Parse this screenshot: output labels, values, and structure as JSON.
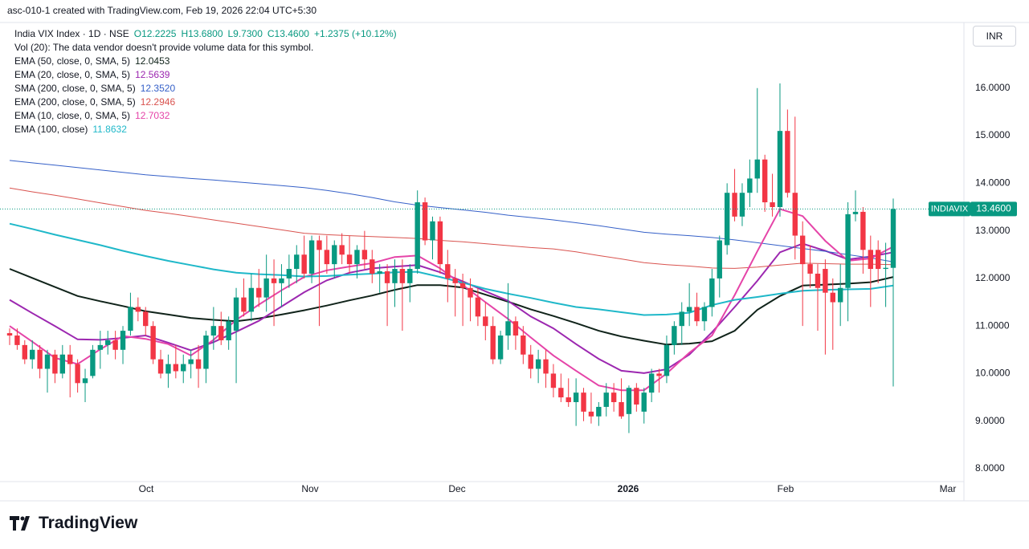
{
  "chart_data": {
    "type": "candlestick",
    "header": "asc-010-1 created with TradingView.com, Feb 19, 2026 22:04 UTC+5:30",
    "symbol": "India VIX Index · 1D · NSE",
    "ohlc_labels": [
      "O12.2225",
      "H13.6800",
      "L9.7300",
      "C13.4600"
    ],
    "change_label": "+1.2375 (+10.12%)",
    "volume_note": "Vol (20): The data vendor doesn't provide volume data for this symbol.",
    "currency": "INR",
    "price_tag": {
      "name": "INDIAVIX",
      "label": "13.4600"
    },
    "brand": "TradingView",
    "up_color": "#089981",
    "down_color": "#f23645",
    "grid": false,
    "x_labels": [
      "Oct",
      "Nov",
      "Dec",
      "2026",
      "Feb",
      "Mar"
    ],
    "ylim": [
      7.73,
      17.38
    ],
    "yticks": [
      {
        "value": 8,
        "label": "8.0000"
      },
      {
        "value": 9,
        "label": "9.0000"
      },
      {
        "value": 10,
        "label": "10.0000"
      },
      {
        "value": 11,
        "label": "11.0000"
      },
      {
        "value": 12,
        "label": "12.0000"
      },
      {
        "value": 13,
        "label": "13.0000"
      },
      {
        "value": 14,
        "label": "14.0000"
      },
      {
        "value": 15,
        "label": "15.0000"
      },
      {
        "value": 16,
        "label": "16.0000"
      }
    ],
    "candles": [
      [
        10.85,
        10.95,
        10.6,
        10.8
      ],
      [
        10.8,
        10.95,
        10.5,
        10.6
      ],
      [
        10.6,
        10.7,
        10.2,
        10.3
      ],
      [
        10.3,
        10.7,
        10.1,
        10.5
      ],
      [
        10.5,
        10.6,
        9.9,
        10.1
      ],
      [
        10.1,
        10.5,
        9.6,
        10.4
      ],
      [
        10.4,
        10.5,
        9.8,
        10.0
      ],
      [
        10.0,
        10.6,
        9.9,
        10.4
      ],
      [
        10.4,
        10.6,
        9.5,
        10.2
      ],
      [
        10.2,
        10.3,
        9.6,
        9.8
      ],
      [
        9.8,
        10.1,
        9.4,
        9.9
      ],
      [
        9.95,
        10.6,
        9.9,
        10.5
      ],
      [
        10.5,
        10.9,
        10.1,
        10.6
      ],
      [
        10.6,
        10.9,
        10.4,
        10.7
      ],
      [
        10.7,
        10.9,
        10.3,
        10.5
      ],
      [
        10.5,
        11.0,
        10.2,
        10.9
      ],
      [
        10.9,
        11.7,
        10.8,
        11.4
      ],
      [
        11.4,
        11.6,
        11.1,
        11.3
      ],
      [
        11.3,
        11.4,
        10.8,
        11.0
      ],
      [
        11.0,
        11.1,
        10.2,
        10.3
      ],
      [
        10.3,
        10.5,
        9.9,
        10.0
      ],
      [
        10.0,
        10.4,
        9.7,
        10.2
      ],
      [
        10.2,
        10.6,
        9.9,
        10.05
      ],
      [
        10.05,
        10.4,
        9.8,
        10.2
      ],
      [
        10.2,
        10.5,
        9.9,
        10.3
      ],
      [
        10.3,
        10.6,
        9.7,
        10.1
      ],
      [
        10.1,
        10.9,
        9.8,
        10.8
      ],
      [
        10.8,
        11.4,
        10.5,
        11.0
      ],
      [
        11.0,
        11.3,
        10.6,
        10.7
      ],
      [
        10.7,
        11.2,
        10.5,
        11.1
      ],
      [
        10.9,
        11.8,
        9.8,
        11.6
      ],
      [
        11.6,
        12.0,
        11.2,
        11.3
      ],
      [
        11.3,
        12.1,
        11.1,
        11.8
      ],
      [
        11.8,
        12.2,
        11.4,
        11.6
      ],
      [
        11.6,
        12.5,
        11.3,
        12.0
      ],
      [
        12.0,
        12.4,
        11.0,
        11.9
      ],
      [
        11.9,
        12.3,
        11.4,
        12.0
      ],
      [
        12.0,
        12.5,
        11.8,
        12.2
      ],
      [
        12.2,
        12.7,
        11.9,
        12.5
      ],
      [
        12.5,
        12.9,
        12.0,
        12.1
      ],
      [
        12.1,
        12.9,
        11.9,
        12.8
      ],
      [
        12.8,
        12.9,
        11.0,
        12.6
      ],
      [
        12.6,
        12.9,
        12.1,
        12.3
      ],
      [
        12.3,
        12.8,
        12.0,
        12.7
      ],
      [
        12.7,
        12.95,
        12.3,
        12.5
      ],
      [
        12.5,
        12.9,
        12.1,
        12.3
      ],
      [
        12.3,
        12.7,
        12.0,
        12.6
      ],
      [
        12.6,
        13.0,
        12.2,
        12.4
      ],
      [
        12.4,
        12.6,
        11.9,
        12.1
      ],
      [
        12.1,
        12.3,
        11.7,
        12.15
      ],
      [
        12.15,
        12.3,
        11.0,
        11.9
      ],
      [
        11.9,
        12.4,
        11.4,
        12.2
      ],
      [
        12.2,
        12.4,
        10.9,
        11.9
      ],
      [
        11.9,
        12.3,
        11.5,
        12.2
      ],
      [
        12.2,
        13.85,
        12.1,
        13.6
      ],
      [
        13.6,
        13.7,
        12.7,
        12.8
      ],
      [
        12.8,
        13.3,
        12.4,
        13.2
      ],
      [
        13.2,
        13.3,
        12.1,
        12.3
      ],
      [
        12.3,
        12.6,
        11.5,
        12.0
      ],
      [
        12.0,
        12.2,
        11.2,
        11.9
      ],
      [
        11.9,
        12.1,
        11.0,
        11.8
      ],
      [
        11.8,
        12.0,
        11.1,
        11.6
      ],
      [
        11.6,
        11.8,
        11.0,
        11.2
      ],
      [
        11.2,
        11.5,
        10.7,
        11.0
      ],
      [
        11.0,
        11.2,
        10.2,
        10.3
      ],
      [
        10.3,
        10.9,
        10.2,
        10.8
      ],
      [
        10.8,
        11.9,
        10.5,
        11.1
      ],
      [
        11.1,
        11.2,
        10.5,
        10.8
      ],
      [
        10.8,
        11.0,
        10.2,
        10.4
      ],
      [
        10.4,
        10.6,
        9.9,
        10.1
      ],
      [
        10.1,
        10.5,
        9.8,
        10.3
      ],
      [
        10.3,
        10.5,
        9.7,
        10.0
      ],
      [
        10.0,
        10.2,
        9.5,
        9.7
      ],
      [
        9.7,
        10.0,
        9.4,
        9.5
      ],
      [
        9.5,
        9.9,
        9.3,
        9.4
      ],
      [
        9.4,
        9.9,
        8.9,
        9.6
      ],
      [
        9.6,
        9.7,
        9.0,
        9.2
      ],
      [
        9.2,
        9.6,
        8.95,
        9.1
      ],
      [
        9.1,
        9.4,
        8.9,
        9.3
      ],
      [
        9.3,
        9.8,
        9.1,
        9.6
      ],
      [
        9.6,
        9.8,
        9.2,
        9.4
      ],
      [
        9.4,
        9.9,
        9.05,
        9.1
      ],
      [
        9.15,
        9.75,
        8.75,
        9.7
      ],
      [
        9.7,
        9.8,
        9.2,
        9.35
      ],
      [
        9.2,
        9.7,
        8.95,
        9.6
      ],
      [
        9.6,
        10.1,
        9.4,
        10.0
      ],
      [
        10.0,
        10.1,
        9.6,
        9.95
      ],
      [
        9.95,
        10.8,
        9.8,
        10.6
      ],
      [
        10.6,
        11.1,
        10.4,
        11.0
      ],
      [
        11.0,
        11.5,
        10.6,
        11.3
      ],
      [
        11.3,
        11.9,
        11.0,
        11.4
      ],
      [
        11.4,
        11.7,
        11.0,
        11.1
      ],
      [
        11.1,
        11.5,
        10.9,
        11.4
      ],
      [
        11.4,
        12.2,
        11.2,
        12.0
      ],
      [
        12.0,
        12.9,
        11.6,
        12.8
      ],
      [
        12.7,
        14.0,
        12.5,
        13.8
      ],
      [
        13.8,
        14.3,
        13.2,
        13.3
      ],
      [
        13.3,
        14.0,
        13.1,
        13.8
      ],
      [
        13.8,
        14.5,
        13.5,
        14.1
      ],
      [
        14.1,
        16.0,
        13.8,
        14.5
      ],
      [
        14.5,
        14.6,
        13.4,
        13.6
      ],
      [
        13.6,
        14.2,
        13.3,
        13.5
      ],
      [
        13.5,
        16.1,
        13.3,
        15.1
      ],
      [
        15.1,
        15.55,
        13.7,
        13.8
      ],
      [
        13.8,
        15.4,
        12.4,
        12.9
      ],
      [
        12.9,
        13.2,
        11.0,
        12.3
      ],
      [
        12.3,
        12.7,
        11.8,
        12.1
      ],
      [
        12.1,
        12.3,
        10.9,
        11.8
      ],
      [
        12.2,
        12.4,
        10.4,
        11.7
      ],
      [
        11.7,
        12.0,
        10.5,
        11.5
      ],
      [
        11.5,
        12.3,
        11.0,
        11.8
      ],
      [
        11.8,
        13.6,
        11.1,
        13.35
      ],
      [
        13.35,
        13.85,
        13.2,
        13.4
      ],
      [
        13.4,
        13.5,
        12.1,
        12.6
      ],
      [
        12.6,
        12.9,
        11.4,
        12.2
      ],
      [
        12.6,
        12.8,
        11.9,
        12.2
      ],
      [
        12.2,
        12.75,
        11.4,
        12.2225
      ],
      [
        12.2225,
        13.68,
        9.73,
        13.46
      ]
    ],
    "series": [
      {
        "name": "EMA (50, close, 0, SMA, 5)",
        "color": "#10231a",
        "width": 2,
        "last_label": "12.0453",
        "values": [
          12.2,
          12.01,
          11.82,
          11.63,
          11.52,
          11.42,
          11.31,
          11.24,
          11.17,
          11.13,
          11.1,
          11.16,
          11.24,
          11.33,
          11.43,
          11.54,
          11.64,
          11.76,
          11.86,
          11.86,
          11.81,
          11.66,
          11.51,
          11.35,
          11.21,
          11.06,
          10.9,
          10.78,
          10.69,
          10.61,
          10.63,
          10.68,
          10.9,
          11.34,
          11.63,
          11.85,
          11.87,
          11.89,
          11.92,
          12.03
        ]
      },
      {
        "name": "EMA (20, close, 0, SMA, 5)",
        "color": "#9c27b0",
        "width": 2,
        "last_label": "12.5639",
        "values": [
          11.55,
          11.27,
          11.0,
          10.72,
          10.71,
          10.75,
          10.8,
          10.65,
          10.49,
          10.66,
          10.88,
          11.11,
          11.41,
          11.71,
          11.96,
          12.12,
          12.21,
          12.25,
          12.28,
          12.13,
          11.94,
          11.73,
          11.53,
          11.2,
          10.95,
          10.62,
          10.31,
          10.06,
          10.01,
          10.09,
          10.4,
          10.87,
          11.4,
          11.95,
          12.55,
          12.73,
          12.58,
          12.4,
          12.46,
          12.55
        ]
      },
      {
        "name": "SMA (200, close, 0, SMA, 5)",
        "color": "#3560c8",
        "width": 1,
        "last_label": "12.3520",
        "values": [
          14.48,
          14.43,
          14.38,
          14.33,
          14.28,
          14.23,
          14.18,
          14.14,
          14.1,
          14.07,
          14.03,
          13.99,
          13.95,
          13.91,
          13.85,
          13.78,
          13.7,
          13.61,
          13.54,
          13.49,
          13.44,
          13.39,
          13.33,
          13.28,
          13.23,
          13.17,
          13.11,
          13.04,
          12.97,
          12.93,
          12.9,
          12.86,
          12.81,
          12.75,
          12.69,
          12.63,
          12.57,
          12.5,
          12.43,
          12.35
        ]
      },
      {
        "name": "EMA (200, close, 0, SMA, 5)",
        "color": "#d9534f",
        "width": 1,
        "last_label": "12.2946",
        "values": [
          13.9,
          13.82,
          13.75,
          13.67,
          13.59,
          13.51,
          13.43,
          13.37,
          13.3,
          13.23,
          13.16,
          13.09,
          13.02,
          12.95,
          12.92,
          12.9,
          12.88,
          12.86,
          12.84,
          12.8,
          12.77,
          12.73,
          12.69,
          12.65,
          12.62,
          12.56,
          12.48,
          12.41,
          12.33,
          12.29,
          12.26,
          12.22,
          12.21,
          12.24,
          12.28,
          12.32,
          12.31,
          12.3,
          12.3,
          12.29
        ]
      },
      {
        "name": "EMA (10, close, 0, SMA, 5)",
        "color": "#e544a8",
        "width": 2,
        "last_label": "12.7032",
        "values": [
          11.0,
          10.67,
          10.33,
          10.2,
          10.51,
          10.79,
          10.73,
          10.62,
          10.38,
          10.71,
          11.13,
          11.45,
          11.75,
          12.03,
          12.17,
          12.25,
          12.32,
          12.45,
          12.48,
          12.21,
          11.86,
          11.5,
          11.15,
          10.76,
          10.38,
          10.06,
          9.75,
          9.65,
          9.65,
          10.0,
          10.44,
          10.8,
          11.65,
          12.57,
          13.46,
          13.31,
          12.79,
          12.37,
          12.42,
          12.67
        ]
      },
      {
        "name": "EMA (100, close)",
        "color": "#1fb8c9",
        "width": 2,
        "last_label": "11.8632",
        "values": [
          13.15,
          13.04,
          12.92,
          12.81,
          12.7,
          12.58,
          12.47,
          12.37,
          12.28,
          12.19,
          12.12,
          12.09,
          12.07,
          12.04,
          12.05,
          12.08,
          12.1,
          12.13,
          12.14,
          12.03,
          11.91,
          11.78,
          11.68,
          11.59,
          11.49,
          11.4,
          11.35,
          11.29,
          11.23,
          11.24,
          11.28,
          11.44,
          11.55,
          11.61,
          11.68,
          11.74,
          11.76,
          11.77,
          11.78,
          11.85
        ]
      }
    ]
  }
}
